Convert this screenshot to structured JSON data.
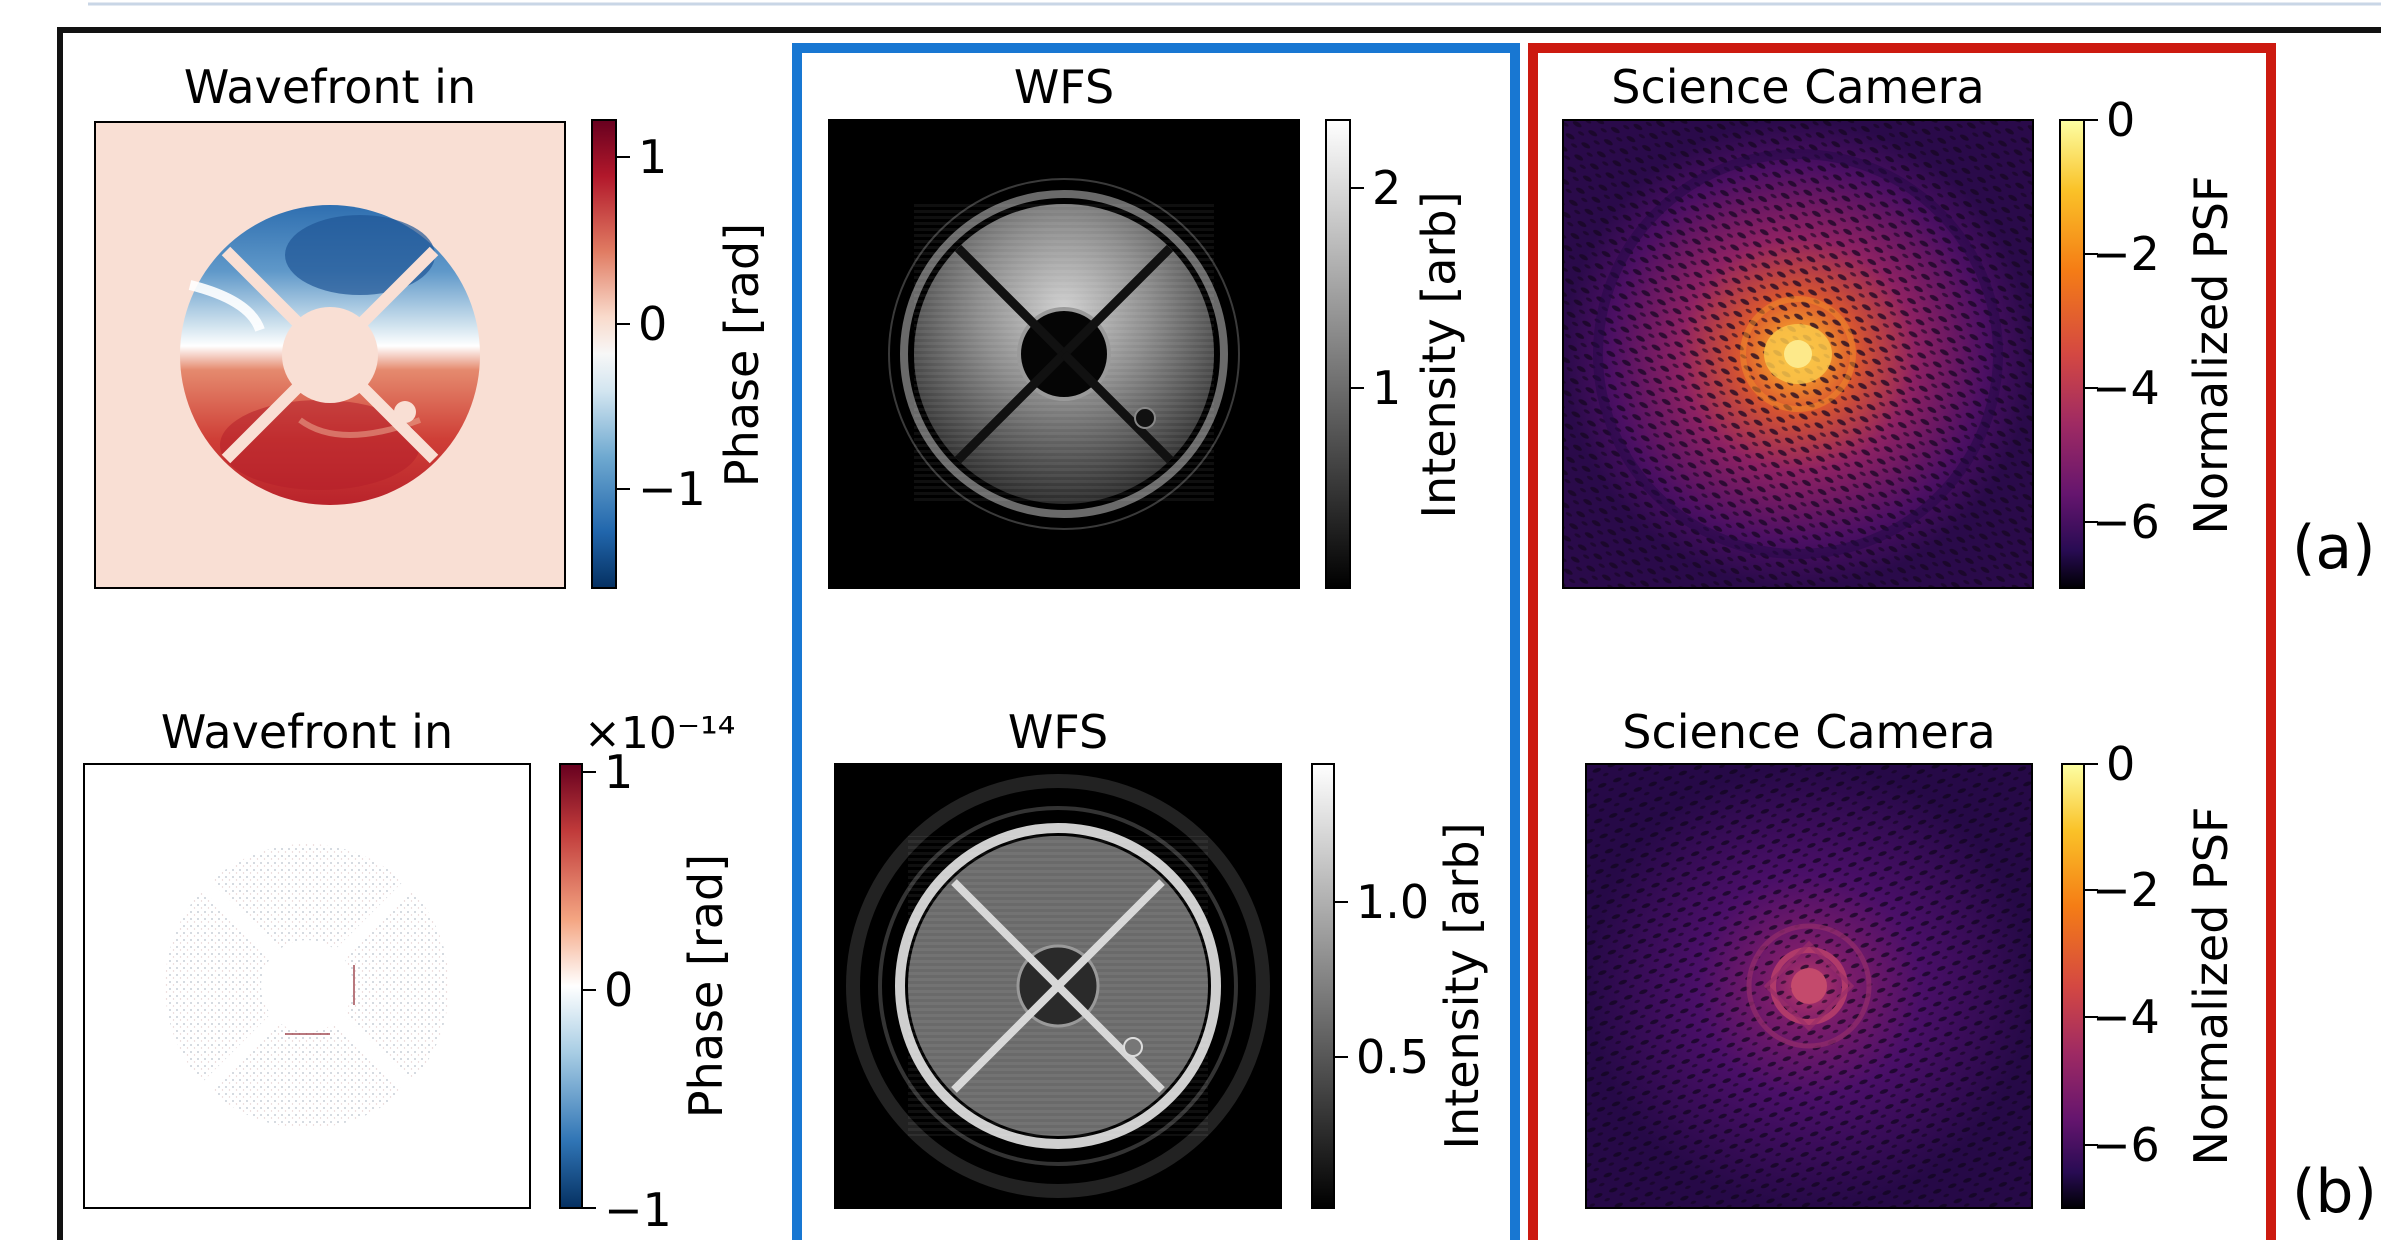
{
  "rows": [
    {
      "id": "a",
      "label": "(a)",
      "wavefront": {
        "title": "Wavefront in",
        "colorbar_label": "Phase [rad]",
        "ticks": [
          "1",
          "0",
          "−1"
        ],
        "offset_text": "",
        "colormap": "RdBu"
      },
      "wfs": {
        "title": "WFS",
        "colorbar_label": "Intensity [arb]",
        "ticks": [
          "2",
          "1"
        ],
        "colormap": "gray"
      },
      "science": {
        "title": "Science Camera",
        "colorbar_label": "Normalized PSF",
        "ticks": [
          "0",
          "−2",
          "−4",
          "−6"
        ],
        "colormap": "inferno"
      }
    },
    {
      "id": "b",
      "label": "(b)",
      "wavefront": {
        "title": "Wavefront in",
        "colorbar_label": "Phase [rad]",
        "ticks": [
          "1",
          "0",
          "−1"
        ],
        "offset_text": "×10⁻¹⁴",
        "colormap": "RdBu"
      },
      "wfs": {
        "title": "WFS",
        "colorbar_label": "Intensity [arb]",
        "ticks": [
          "1.0",
          "0.5"
        ],
        "colormap": "gray"
      },
      "science": {
        "title": "Science Camera",
        "colorbar_label": "Normalized PSF",
        "ticks": [
          "0",
          "−2",
          "−4",
          "−6"
        ],
        "colormap": "inferno"
      }
    }
  ],
  "colors": {
    "wfs_frame": "#1877d2",
    "science_frame": "#cc1a10",
    "outer_frame": "#111111"
  }
}
